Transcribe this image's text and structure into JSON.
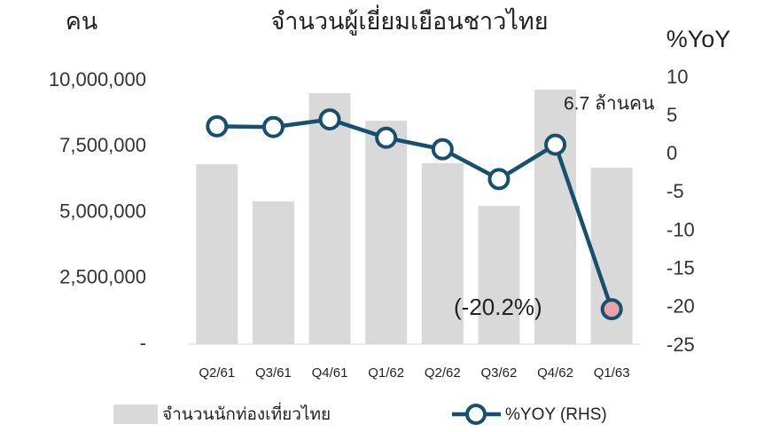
{
  "chart_data": {
    "type": "bar",
    "title": "จำนวนผู้เยี่ยมเยือนชาวไทย",
    "ylabel": "คน",
    "y2label": "%YoY",
    "categories": [
      "Q2/61",
      "Q3/61",
      "Q4/61",
      "Q1/62",
      "Q2/62",
      "Q3/62",
      "Q4/62",
      "Q1/63"
    ],
    "series": [
      {
        "name": "จำนวนนักท่องเที่ยวไทย",
        "type": "bar",
        "color": "#d9d9d9",
        "values": [
          6830000,
          5420000,
          9530000,
          8480000,
          6870000,
          5250000,
          9660000,
          6700000
        ]
      },
      {
        "name": "%YOY (RHS)",
        "type": "line",
        "axis": "y2",
        "color": "#17506e",
        "values": [
          3.7,
          3.6,
          4.6,
          2.2,
          0.7,
          -3.2,
          1.3,
          -20.2
        ]
      }
    ],
    "annotations": [
      {
        "text": "6.7 ล้านคน",
        "color": "#000000"
      },
      {
        "text": "(-20.2%)",
        "color": "#c00000"
      }
    ],
    "highlight_color": "#e9a3aa",
    "ylim": [
      0,
      10000000
    ],
    "yticks": [
      {
        "value": 0,
        "label": "-"
      },
      {
        "value": 2500000,
        "label": "2,500,000"
      },
      {
        "value": 5000000,
        "label": "5,000,000"
      },
      {
        "value": 7500000,
        "label": "7,500,000"
      },
      {
        "value": 10000000,
        "label": "10,000,000"
      }
    ],
    "y2lim": [
      -25,
      10
    ],
    "y2ticks": [
      10,
      5,
      0,
      -5,
      -10,
      -15,
      -20,
      -25
    ]
  }
}
